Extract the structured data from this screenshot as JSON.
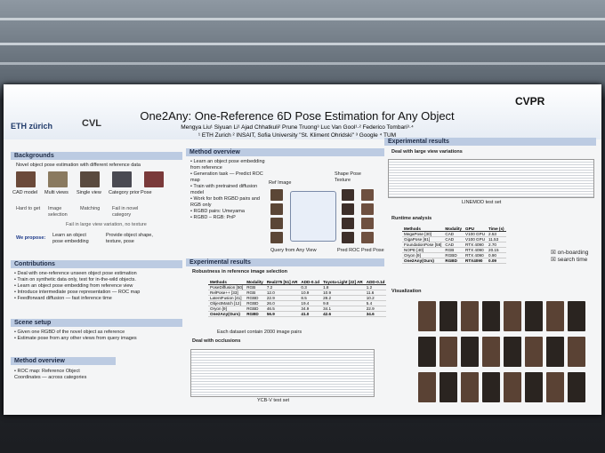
{
  "poster": {
    "title": "One2Any: One-Reference 6D Pose Estimation for Any Object",
    "authors": "Mengya Liu¹   Siyuan Li¹   Ajad Chhatkuli²   Prune Truong³   Luc Van Gool¹·²   Federico Tombari³·⁴",
    "affiliations": "¹ ETH Zurich   ² INSAIT, Sofia University \"St. Kliment Ohridski\"   ³ Google   ⁴ TUM",
    "logos": [
      "ETH zürich",
      "CVL",
      "CVPR"
    ],
    "backgrounds": {
      "heading": "Backgrounds",
      "intro": "Novel object pose estimation with different reference data",
      "references": [
        "CAD model",
        "Multi views",
        "Single view",
        "Category prior",
        "Pose"
      ],
      "issues": [
        "Hard to get",
        "Image selection",
        "Matching",
        "Fail in novel category"
      ],
      "issue_single": "Fail in large view variation, no texture",
      "propose_label": "We propose:",
      "propose": [
        "Learn an object pose embedding",
        "Provide object shape, texture, pose"
      ]
    },
    "contributions": {
      "heading": "Contributions",
      "items": [
        "Deal with one-reference unseen object pose estimation",
        "Train on synthetic data only, test for in-the-wild objects.",
        "Learn an object pose embedding from reference view",
        "Introduce intermediate pose representation — ROC map",
        "Feedforward diffusion — fast inference time"
      ]
    },
    "scene_setup": {
      "heading": "Scene setup",
      "items": [
        "Given one RGBD of the novel object as reference",
        "Estimate pose from any other views from query images"
      ]
    },
    "method_review": {
      "heading": "Method overview",
      "items": [
        "ROC map: Reference Object Coordinates — across categories"
      ]
    },
    "method_overview": {
      "heading": "Method overview",
      "items": [
        "Learn an object pose embedding from reference",
        "Generation task — Predict ROC map",
        "Train with pretrained diffusion model",
        "Work for both RGBD pairs and RGB only",
        "RGBD pairs: Umeyama",
        "RGBD – RGB: PnP"
      ],
      "figure_labels": [
        "Ref Image",
        "Shape Pose Texture",
        "Query from Any View",
        "Pred ROC",
        "Pred Pose"
      ]
    },
    "results_left": {
      "heading": "Experimental results",
      "robustness": "Robustness in reference image selection",
      "table": {
        "header": [
          "Methods",
          "Modality",
          "Real275 [51] AR",
          "ADD-0.1d",
          "Toyota-Light [22] AR",
          "ADD-0.1d"
        ],
        "rows": [
          [
            "PoseDiffusion [50]",
            "RGB",
            "7.2",
            "0.3",
            "1.8",
            "1.2"
          ],
          [
            "RelPose++ [33]",
            "RGB",
            "12.0",
            "10.9",
            "10.9",
            "11.6"
          ],
          [
            "LatentFusion [41]",
            "RGBD",
            "22.9",
            "8.5",
            "28.2",
            "10.2"
          ],
          [
            "ObjectMatch [12]",
            "RGBD",
            "26.0",
            "19.4",
            "9.8",
            "5.4"
          ],
          [
            "Oryon [9]",
            "RGBD",
            "46.5",
            "34.9",
            "34.1",
            "22.9"
          ],
          [
            "One2Any(Ours)",
            "RGBD",
            "56.9",
            "41.0",
            "42.6",
            "34.6"
          ]
        ]
      },
      "note": "Each dataset contain 2000 image pairs",
      "occlusions": "Deal with occlusions",
      "caption": "YCB-V test set"
    },
    "results_right": {
      "heading": "Experimental results",
      "large_view": "Deal with large view variations",
      "caption": "LINEMOD test set",
      "runtime": "Runtime analysis",
      "table": {
        "header": [
          "Methods",
          "Modality",
          "GPU",
          "Time (s)"
        ],
        "rows": [
          [
            "MegaPose [30]",
            "CAD",
            "V100 GPU",
            "2.53"
          ],
          [
            "GigaPose [61]",
            "CAD",
            "V100 GPU",
            "11.53"
          ],
          [
            "FoundationPose [58]",
            "CAD",
            "RTX 4090",
            "2.70"
          ],
          [
            "NOPE [40]",
            "RGB",
            "RTX 4090",
            "20.15"
          ],
          [
            "Oryon [9]",
            "RGBD",
            "RTX 4090",
            "0.90"
          ],
          [
            "One2Any(Ours)",
            "RGBD",
            "RTX4090",
            "0.09"
          ]
        ]
      },
      "legend": [
        "on-boarding",
        "search time"
      ],
      "visualization": "Visualization"
    }
  }
}
